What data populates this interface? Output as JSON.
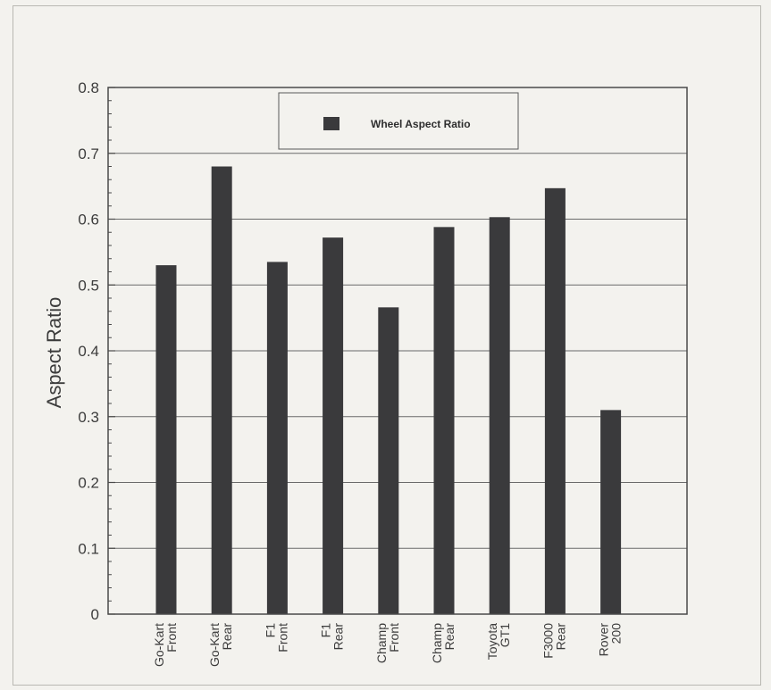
{
  "chart_data": {
    "type": "bar",
    "categories": [
      [
        "Go-Kart",
        "Front"
      ],
      [
        "Go-Kart",
        "Rear"
      ],
      [
        "F1",
        "Front"
      ],
      [
        "F1",
        "Rear"
      ],
      [
        "Champ",
        "Front"
      ],
      [
        "Champ",
        "Rear"
      ],
      [
        "Toyota",
        "GT1"
      ],
      [
        "F3000",
        "Rear"
      ],
      [
        "Rover",
        "200"
      ]
    ],
    "series": [
      {
        "name": "Wheel Aspect Ratio",
        "values": [
          0.53,
          0.68,
          0.535,
          0.572,
          0.466,
          0.588,
          0.603,
          0.647,
          0.31
        ]
      }
    ],
    "title": "",
    "xlabel": "",
    "ylabel": "Aspect Ratio",
    "ylim": [
      0,
      0.8
    ],
    "yticks": [
      "0",
      "0.1",
      "0.2",
      "0.3",
      "0.4",
      "0.5",
      "0.6",
      "0.7",
      "0.8"
    ],
    "grid": "horizontal",
    "legend_position": "top-center",
    "colors": {
      "bar": "#3a3a3c",
      "grid": "#6a6a6a",
      "axis": "#4a4a4a",
      "background": "#f3f2ee"
    }
  }
}
